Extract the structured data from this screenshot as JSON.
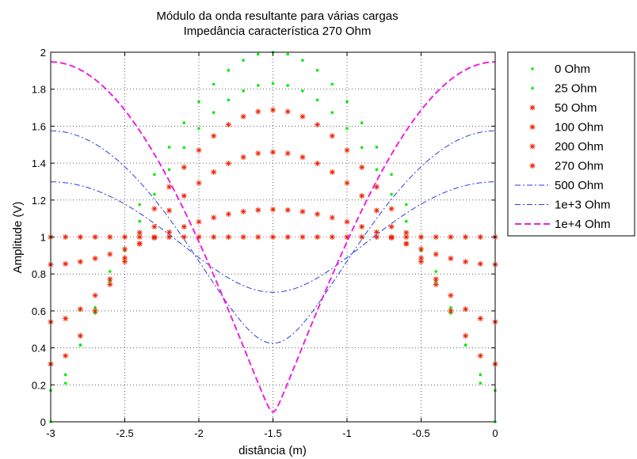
{
  "chart_data": {
    "type": "line",
    "title": [
      "Módulo da onda resultante para várias cargas",
      "Impedância característica 270 Ohm"
    ],
    "xlabel": "distância (m)",
    "ylabel": "Amplitude (V)",
    "xlim": [
      -3,
      0
    ],
    "ylim": [
      0,
      2
    ],
    "x_ticks": [
      "-3",
      "-2.5",
      "-2",
      "-1.5",
      "-1",
      "-0.5",
      "0"
    ],
    "y_ticks": [
      "0",
      "0.2",
      "0.4",
      "0.6",
      "0.8",
      "1",
      "1.2",
      "1.4",
      "1.6",
      "1.8",
      "2"
    ],
    "grid": true,
    "legend_position": "outside-right",
    "characteristic_impedance_ohm": 270,
    "series": [
      {
        "name": "0 Ohm",
        "load": 0,
        "color": "#00ee00",
        "style": "dots"
      },
      {
        "name": "25 Ohm",
        "load": 25,
        "color": "#00ee00",
        "style": "dots"
      },
      {
        "name": "50 Ohm",
        "load": 50,
        "color": "#ee2200",
        "style": "stars"
      },
      {
        "name": "100 Ohm",
        "load": 100,
        "color": "#ee2200",
        "style": "stars"
      },
      {
        "name": "200 Ohm",
        "load": 200,
        "color": "#ee2200",
        "style": "stars"
      },
      {
        "name": "270 Ohm",
        "load": 270,
        "color": "#ee2200",
        "style": "stars"
      },
      {
        "name": "500 Ohm",
        "load": 500,
        "color": "#2a3fd8",
        "style": "dashdot"
      },
      {
        "name": "1e+3 Ohm",
        "load": 1000,
        "color": "#2a3fd8",
        "style": "dashdot"
      },
      {
        "name": "1e+4 Ohm",
        "load": 10000,
        "color": "#ee22dd",
        "style": "dashed"
      }
    ]
  }
}
